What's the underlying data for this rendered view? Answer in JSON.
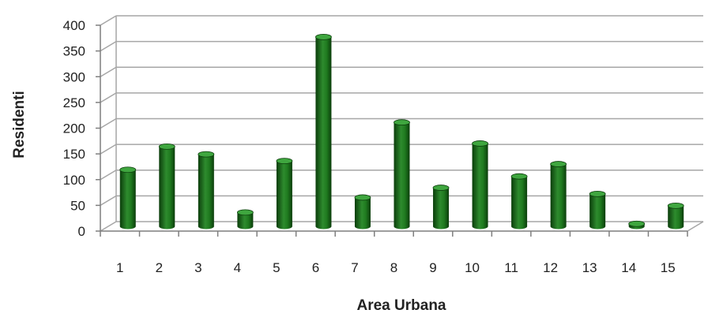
{
  "chart_data": {
    "type": "bar",
    "title": "",
    "xlabel": "Area Urbana",
    "ylabel": "Residenti",
    "ylim": [
      0,
      400
    ],
    "yticks": [
      "0",
      "50",
      "100",
      "150",
      "200",
      "250",
      "300",
      "350",
      "400"
    ],
    "categories": [
      "1",
      "2",
      "3",
      "4",
      "5",
      "6",
      "7",
      "8",
      "9",
      "10",
      "11",
      "12",
      "13",
      "14",
      "15"
    ],
    "values": [
      110,
      155,
      140,
      27,
      127,
      368,
      56,
      202,
      75,
      161,
      97,
      121,
      63,
      5,
      40
    ],
    "grid": true,
    "legend": "none",
    "bar_style": "3d-cylinder",
    "colors": {
      "bar_dark": "#0b3d0b",
      "bar_mid": "#1f7a1f",
      "bar_light": "#3fa63f",
      "grid": "#a6a6a6",
      "axis": "#7f7f7f"
    }
  }
}
